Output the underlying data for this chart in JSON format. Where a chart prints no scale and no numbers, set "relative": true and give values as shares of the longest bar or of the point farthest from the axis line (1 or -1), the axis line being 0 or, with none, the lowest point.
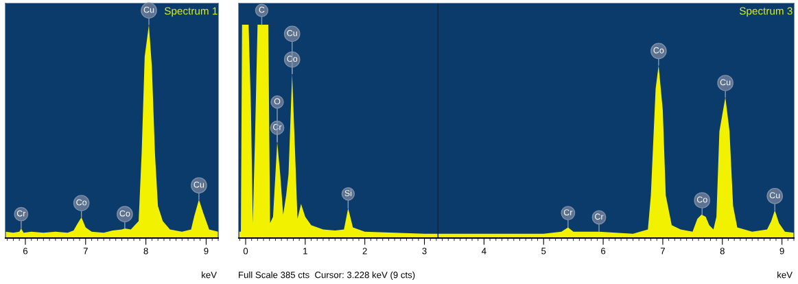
{
  "chart_data": [
    {
      "type": "area",
      "title": "Spectrum 1",
      "xlabel": "keV",
      "relative": true,
      "color": "#f2f200",
      "tick_labels": "x",
      "xlim": [
        5.67,
        9.2
      ],
      "xticks": [
        6,
        7,
        8,
        9
      ],
      "x": [
        5.67,
        5.8,
        5.9,
        5.93,
        5.97,
        6.1,
        6.3,
        6.5,
        6.7,
        6.8,
        6.86,
        6.93,
        7.0,
        7.1,
        7.3,
        7.45,
        7.6,
        7.65,
        7.75,
        7.88,
        7.93,
        7.98,
        8.05,
        8.1,
        8.15,
        8.2,
        8.28,
        8.4,
        8.6,
        8.75,
        8.8,
        8.88,
        8.95,
        9.05,
        9.2
      ],
      "values": [
        0.03,
        0.025,
        0.03,
        0.045,
        0.025,
        0.03,
        0.025,
        0.03,
        0.025,
        0.035,
        0.065,
        0.097,
        0.05,
        0.03,
        0.025,
        0.035,
        0.04,
        0.045,
        0.04,
        0.08,
        0.4,
        0.85,
        1,
        0.8,
        0.4,
        0.15,
        0.08,
        0.04,
        0.03,
        0.04,
        0.1,
        0.18,
        0.12,
        0.04,
        0.03
      ],
      "annotations": [
        {
          "text": "Cr",
          "x": 5.93,
          "y": 0.045
        },
        {
          "text": "Co",
          "x": 6.93,
          "y": 0.097
        },
        {
          "text": "Co",
          "x": 7.65,
          "y": 0.045
        },
        {
          "text": "Cu",
          "x": 8.05,
          "y": 1
        },
        {
          "text": "Cu",
          "x": 8.88,
          "y": 0.18
        }
      ]
    },
    {
      "type": "area",
      "title": "Spectrum 3",
      "xlabel": "keV",
      "relative": true,
      "color": "#f2f200",
      "tick_labels": "x",
      "xlim": [
        -0.115,
        9.2
      ],
      "xticks": [
        0,
        1,
        2,
        3,
        4,
        5,
        6,
        7,
        8,
        9
      ],
      "x": [
        -0.11,
        -0.08,
        -0.06,
        0.05,
        0.09,
        0.12,
        0.16,
        0.2,
        0.38,
        0.41,
        0.46,
        0.53,
        0.58,
        0.63,
        0.68,
        0.72,
        0.78,
        0.83,
        0.87,
        0.93,
        1.0,
        1.1,
        1.3,
        1.5,
        1.65,
        1.72,
        1.8,
        2.0,
        2.5,
        3.0,
        3.5,
        4.0,
        4.5,
        5.0,
        5.3,
        5.41,
        5.5,
        5.93,
        6.5,
        6.75,
        6.8,
        6.88,
        6.93,
        7.0,
        7.05,
        7.15,
        7.3,
        7.5,
        7.58,
        7.65,
        7.72,
        7.78,
        7.85,
        7.9,
        7.95,
        8.05,
        8.12,
        8.18,
        8.25,
        8.5,
        8.75,
        8.82,
        8.88,
        8.95,
        9.05,
        9.2
      ],
      "values": [
        0.03,
        0.03,
        1,
        1,
        0.6,
        0.07,
        0.5,
        1,
        1,
        0.07,
        0.1,
        0.45,
        0.3,
        0.11,
        0.2,
        0.3,
        0.77,
        0.4,
        0.09,
        0.16,
        0.1,
        0.06,
        0.04,
        0.035,
        0.04,
        0.14,
        0.05,
        0.03,
        0.025,
        0.02,
        0.02,
        0.02,
        0.02,
        0.02,
        0.03,
        0.05,
        0.03,
        0.03,
        0.02,
        0.04,
        0.2,
        0.7,
        0.81,
        0.6,
        0.2,
        0.06,
        0.04,
        0.03,
        0.09,
        0.11,
        0.1,
        0.06,
        0.04,
        0.1,
        0.5,
        0.66,
        0.5,
        0.15,
        0.05,
        0.03,
        0.04,
        0.08,
        0.13,
        0.07,
        0.03,
        0.025
      ],
      "ref_lines": [
        {
          "axis": "x",
          "value": 3.228,
          "color": "#0a2440"
        }
      ],
      "annotations": [
        {
          "text": "C",
          "x": 0.27,
          "y": 1
        },
        {
          "text": "Cr",
          "x": 0.53,
          "y": 0.45
        },
        {
          "text": "O",
          "x": 0.53,
          "y": 0.45
        },
        {
          "text": "Co",
          "x": 0.78,
          "y": 0.77
        },
        {
          "text": "Cu",
          "x": 0.78,
          "y": 0.77
        },
        {
          "text": "Si",
          "x": 1.72,
          "y": 0.14
        },
        {
          "text": "Cr",
          "x": 5.41,
          "y": 0.05
        },
        {
          "text": "Cr",
          "x": 5.93,
          "y": 0.03
        },
        {
          "text": "Co",
          "x": 6.93,
          "y": 0.81
        },
        {
          "text": "Co",
          "x": 7.66,
          "y": 0.11
        },
        {
          "text": "Cu",
          "x": 8.05,
          "y": 0.66
        },
        {
          "text": "Cu",
          "x": 8.88,
          "y": 0.13
        },
        "Full Scale 385 cts  Cursor: 3.228 keV (9 cts)"
      ]
    }
  ]
}
